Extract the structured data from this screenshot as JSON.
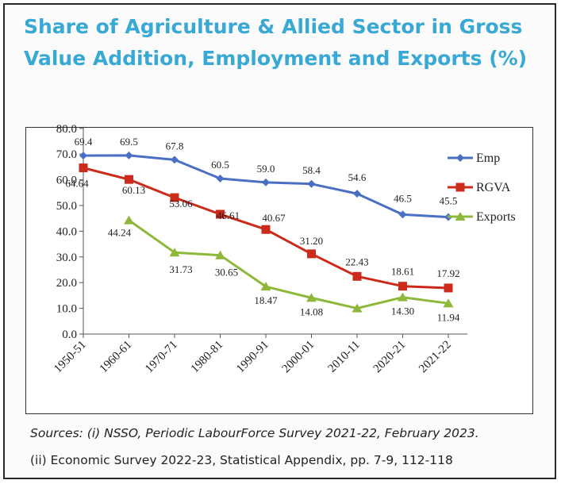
{
  "title": "Share of Agriculture & Allied Sector in  Gross Value  Addition,  Employment  and Exports (%)",
  "chart_data": {
    "type": "line",
    "categories": [
      "1950-51",
      "1960-61",
      "1970-71",
      "1980-81",
      "1990-91",
      "2000-01",
      "2010-11",
      "2020-21",
      "2021-22"
    ],
    "y_ticks": [
      "80.0",
      "70.0",
      "60.0",
      "50.0",
      "40.0",
      "30.0",
      "20.0",
      "10.0",
      "0.0"
    ],
    "ylim": [
      0,
      80
    ],
    "grid": false,
    "legend_position": "right",
    "series": [
      {
        "name": "Emp",
        "color": "#4a6fc4",
        "marker": "diamond",
        "values": [
          69.4,
          69.5,
          67.8,
          60.5,
          59.0,
          58.4,
          54.6,
          46.5,
          45.5
        ],
        "labels": [
          "69.4",
          "69.5",
          "67.8",
          "60.5",
          "59.0",
          "58.4",
          "54.6",
          "46.5",
          "45.5"
        ]
      },
      {
        "name": "RGVA",
        "color": "#cc2a1a",
        "marker": "square",
        "values": [
          64.64,
          60.13,
          53.06,
          46.61,
          40.67,
          31.2,
          22.43,
          18.61,
          17.92
        ],
        "labels": [
          "64.64",
          "60.13",
          "53.06",
          "46.61",
          "40.67",
          "31.20",
          "22.43",
          "18.61",
          "17.92"
        ]
      },
      {
        "name": "Exports",
        "color": "#8db83a",
        "marker": "triangle",
        "values": [
          null,
          44.24,
          31.73,
          30.65,
          18.47,
          14.08,
          10.0,
          14.3,
          11.94
        ],
        "labels": [
          "",
          "44.24",
          "31.73",
          "30.65",
          "18.47",
          "14.08",
          "",
          "14.30",
          "11.94"
        ]
      }
    ]
  },
  "sources": {
    "line1": "Sources: (i) NSSO, Periodic LabourForce Survey 2021-22, February 2023.",
    "line2": "(ii) Economic Survey 2022-23, Statistical Appendix, pp. 7-9, 112-118"
  }
}
